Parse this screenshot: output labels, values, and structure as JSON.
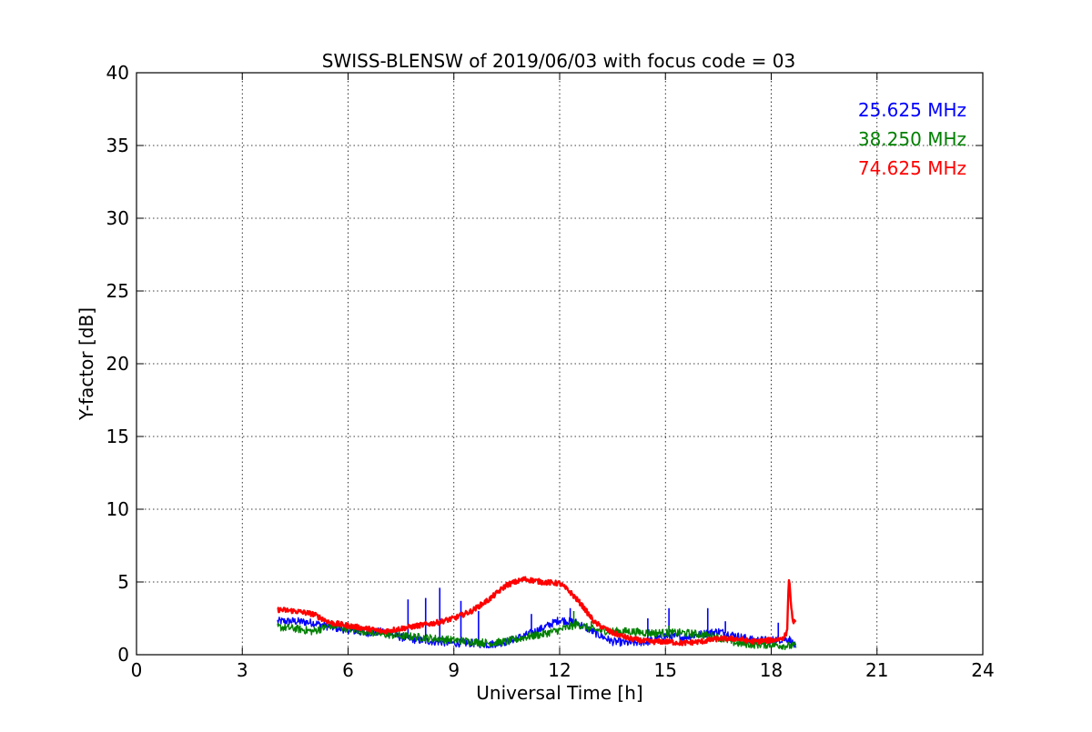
{
  "chart_data": {
    "type": "line",
    "title": "SWISS-BLENSW of 2019/06/03 with focus code = 03",
    "xlabel": "Universal Time [h]",
    "ylabel": "Y-factor [dB]",
    "xlim": [
      0,
      24
    ],
    "ylim": [
      0,
      40
    ],
    "xticks": [
      "0",
      "3",
      "6",
      "9",
      "12",
      "15",
      "18",
      "21",
      "24"
    ],
    "yticks": [
      "0",
      "5",
      "10",
      "15",
      "20",
      "25",
      "30",
      "35",
      "40"
    ],
    "grid": true,
    "legend_position": "top-right",
    "series": [
      {
        "name": "25.625 MHz",
        "color": "#0000ff",
        "x": [
          4.0,
          4.5,
          5.0,
          5.5,
          6.0,
          6.5,
          7.0,
          7.5,
          8.0,
          8.5,
          9.0,
          9.5,
          10.0,
          10.5,
          11.0,
          11.5,
          12.0,
          12.5,
          13.0,
          13.5,
          14.0,
          14.5,
          15.0,
          15.5,
          16.0,
          16.5,
          17.0,
          17.5,
          18.0,
          18.5,
          18.7
        ],
        "y": [
          2.3,
          2.3,
          2.2,
          1.9,
          1.7,
          1.5,
          1.6,
          1.2,
          1.0,
          0.9,
          0.8,
          0.8,
          0.7,
          0.9,
          1.3,
          1.8,
          2.4,
          2.2,
          1.5,
          0.9,
          0.8,
          0.9,
          1.3,
          1.2,
          1.4,
          1.6,
          1.3,
          1.0,
          1.0,
          1.1,
          0.5
        ],
        "spikes": [
          [
            7.7,
            3.8
          ],
          [
            8.2,
            3.9
          ],
          [
            8.6,
            4.6
          ],
          [
            9.2,
            3.7
          ],
          [
            9.7,
            3.0
          ],
          [
            11.2,
            2.8
          ],
          [
            12.3,
            3.2
          ],
          [
            14.5,
            2.5
          ],
          [
            15.1,
            3.2
          ],
          [
            16.2,
            3.2
          ],
          [
            16.7,
            2.3
          ],
          [
            18.2,
            2.2
          ]
        ]
      },
      {
        "name": "38.250 MHz",
        "color": "#008000",
        "x": [
          4.0,
          4.5,
          5.0,
          5.5,
          6.0,
          6.5,
          7.0,
          7.5,
          8.0,
          8.5,
          9.0,
          9.5,
          10.0,
          10.5,
          11.0,
          11.5,
          12.0,
          12.5,
          13.0,
          13.5,
          14.0,
          14.5,
          15.0,
          15.5,
          16.0,
          16.5,
          17.0,
          17.5,
          18.0,
          18.5,
          18.7
        ],
        "y": [
          1.9,
          1.8,
          1.6,
          2.0,
          1.8,
          1.6,
          1.4,
          1.3,
          1.2,
          1.1,
          1.0,
          0.9,
          0.8,
          0.9,
          1.2,
          1.4,
          1.7,
          2.1,
          1.7,
          1.6,
          1.6,
          1.5,
          1.5,
          1.5,
          1.4,
          1.2,
          0.8,
          0.7,
          0.7,
          0.6,
          0.6
        ],
        "spikes": [
          [
            12.4,
            3.0
          ],
          [
            12.9,
            2.3
          ],
          [
            15.1,
            2.0
          ]
        ]
      },
      {
        "name": "74.625 MHz",
        "color": "#ff0000",
        "x": [
          4.0,
          4.5,
          5.0,
          5.5,
          6.0,
          6.5,
          7.0,
          7.5,
          8.0,
          8.5,
          9.0,
          9.5,
          10.0,
          10.5,
          11.0,
          11.5,
          12.0,
          12.3,
          12.6,
          13.0,
          13.5,
          14.0,
          14.5,
          15.0,
          15.5,
          16.0,
          16.5,
          17.0,
          17.5,
          18.0,
          18.3,
          18.45,
          18.5,
          18.6,
          18.7
        ],
        "y": [
          3.1,
          3.0,
          2.8,
          2.2,
          2.0,
          1.8,
          1.6,
          1.8,
          2.0,
          2.2,
          2.5,
          3.0,
          3.8,
          4.8,
          5.2,
          5.0,
          4.9,
          4.3,
          3.5,
          2.2,
          1.5,
          1.1,
          0.9,
          0.9,
          0.8,
          0.9,
          1.1,
          1.1,
          0.9,
          1.0,
          1.1,
          1.5,
          5.4,
          2.4,
          2.1
        ],
        "spikes": []
      }
    ]
  }
}
